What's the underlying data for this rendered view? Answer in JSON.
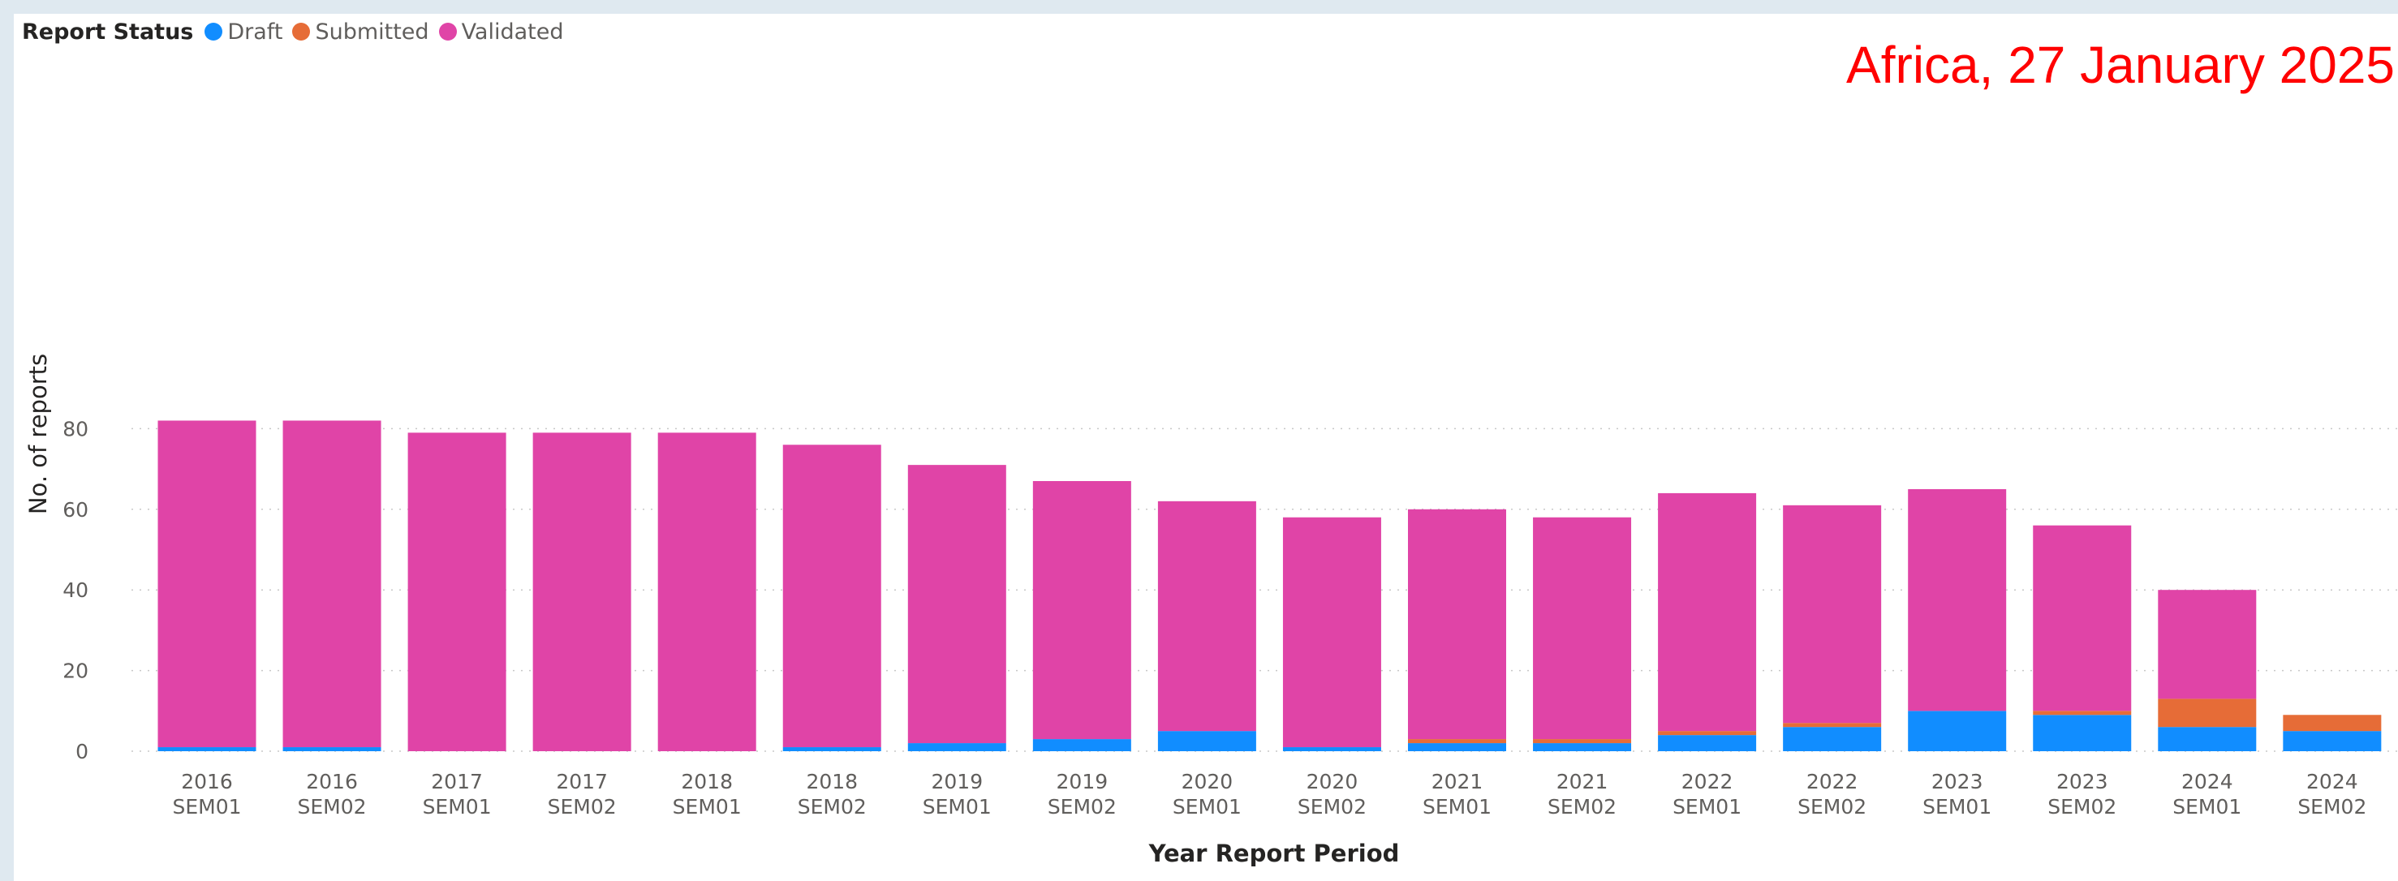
{
  "note": "Africa, 27 January 2025",
  "chart_data": {
    "type": "bar",
    "stacked": true,
    "legend_title": "Report Status",
    "legend_position": "top-left",
    "xlabel": "Year Report Period",
    "ylabel": "No. of reports",
    "ylim": [
      0,
      85
    ],
    "yticks": [
      0,
      20,
      40,
      60,
      80
    ],
    "grid": "horizontal dotted",
    "categories": [
      [
        "2016",
        "SEM01"
      ],
      [
        "2016",
        "SEM02"
      ],
      [
        "2017",
        "SEM01"
      ],
      [
        "2017",
        "SEM02"
      ],
      [
        "2018",
        "SEM01"
      ],
      [
        "2018",
        "SEM02"
      ],
      [
        "2019",
        "SEM01"
      ],
      [
        "2019",
        "SEM02"
      ],
      [
        "2020",
        "SEM01"
      ],
      [
        "2020",
        "SEM02"
      ],
      [
        "2021",
        "SEM01"
      ],
      [
        "2021",
        "SEM02"
      ],
      [
        "2022",
        "SEM01"
      ],
      [
        "2022",
        "SEM02"
      ],
      [
        "2023",
        "SEM01"
      ],
      [
        "2023",
        "SEM02"
      ],
      [
        "2024",
        "SEM01"
      ],
      [
        "2024",
        "SEM02"
      ]
    ],
    "series": [
      {
        "name": "Draft",
        "color": "#118dff",
        "values": [
          1,
          1,
          0,
          0,
          0,
          1,
          2,
          3,
          5,
          1,
          2,
          2,
          4,
          6,
          10,
          9,
          6,
          5
        ]
      },
      {
        "name": "Submitted",
        "color": "#e66c37",
        "values": [
          0,
          0,
          0,
          0,
          0,
          0,
          0,
          0,
          0,
          0,
          1,
          1,
          1,
          1,
          0,
          1,
          7,
          4
        ]
      },
      {
        "name": "Validated",
        "color": "#e044a7",
        "values": [
          81,
          81,
          79,
          79,
          79,
          75,
          69,
          64,
          57,
          57,
          57,
          55,
          59,
          54,
          55,
          46,
          27,
          0
        ]
      }
    ]
  }
}
